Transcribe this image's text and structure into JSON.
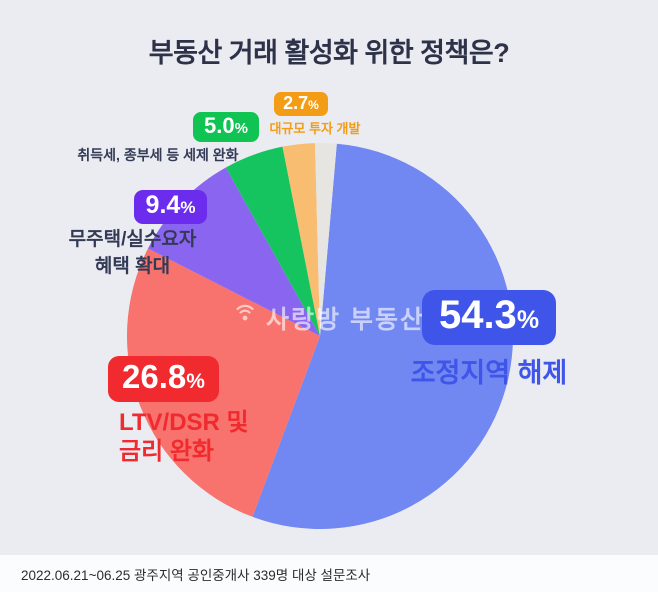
{
  "page": {
    "title": "부동산 거래 활성화 위한 정책은?",
    "watermark": "사랑방 부동산",
    "footer": "2022.06.21~06.25 광주지역 공인중개사 339명 대상 설문조사"
  },
  "chart_data": {
    "type": "pie",
    "title": "부동산 거래 활성화 위한 정책은?",
    "direction": "clockwise",
    "start_angle_deg": 5,
    "slices": [
      {
        "label": "조정지역 해제",
        "value": 54.3,
        "color": "#7187f2"
      },
      {
        "label": "LTV/DSR 및 금리 완화",
        "value": 26.8,
        "color": "#f8736d"
      },
      {
        "label": "무주택/실수요자 혜택 확대",
        "value": 9.4,
        "color": "#8a65f0"
      },
      {
        "label": "취득세, 종부세 등 세제 완화",
        "value": 5.0,
        "color": "#15c45f"
      },
      {
        "label": "대규모 투자 개발",
        "value": 2.7,
        "color": "#f9bd72"
      },
      {
        "label": "",
        "value": 1.8,
        "color": "#e6e5e1"
      }
    ]
  },
  "callouts": {
    "adjust": {
      "value": "54.3",
      "sign": "%",
      "line1": "조정지역 해제",
      "badge_color": "#3f55ea",
      "text_color": "#3f55ea"
    },
    "ltv": {
      "value": "26.8",
      "sign": "%",
      "line1": "LTV/DSR 및",
      "line2": "금리 완화",
      "badge_color": "#f02a2e",
      "text_color": "#f02a2e"
    },
    "nohouse": {
      "value": "9.4",
      "sign": "%",
      "line1": "무주택/실수요자",
      "line2": "혜택 확대",
      "badge_color": "#6b2cee",
      "text_color": "#333a55"
    },
    "tax": {
      "value": "5.0",
      "sign": "%",
      "line1": "취득세, 종부세 등 세제 완화",
      "badge_color": "#0fc453",
      "text_color": "#333a55"
    },
    "invest": {
      "value": "2.7",
      "sign": "%",
      "line1": "대규모 투자 개발",
      "badge_color": "#f39c15",
      "text_color": "#f39c15"
    }
  }
}
